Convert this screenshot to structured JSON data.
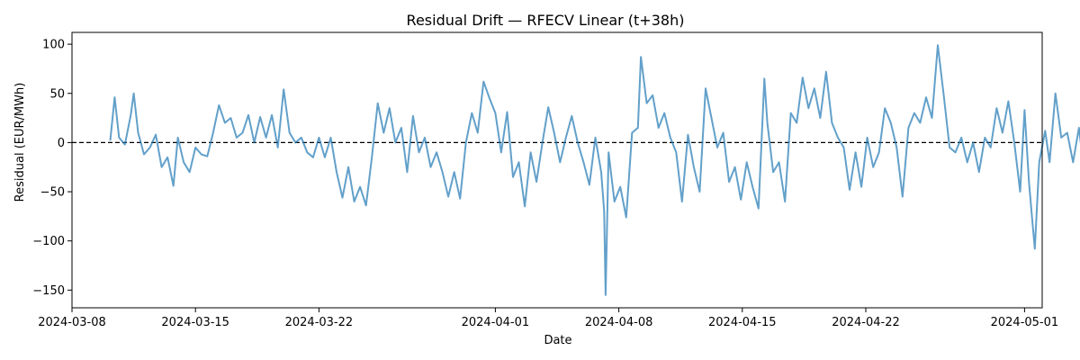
{
  "chart_data": {
    "type": "line",
    "title": "Residual Drift — RFECV Linear (t+38h)",
    "xlabel": "Date",
    "ylabel": "Residual (EUR/MWh)",
    "x_range": [
      "2024-03-08",
      "2024-05-02"
    ],
    "ylim": [
      -168,
      112
    ],
    "x_ticks": [
      "2024-03-08",
      "2024-03-15",
      "2024-03-22",
      "2024-04-01",
      "2024-04-08",
      "2024-04-15",
      "2024-04-22",
      "2024-05-01"
    ],
    "y_ticks": [
      -150,
      -100,
      -50,
      0,
      50,
      100
    ],
    "grid": false,
    "reference_line": {
      "y": 0,
      "style": "dashed",
      "color": "#000000"
    },
    "series": [
      {
        "color": "#1f77b4",
        "opacity": 0.7,
        "points": [
          [
            "2024-03-10T04:00",
            2
          ],
          [
            "2024-03-10T10:00",
            46
          ],
          [
            "2024-03-10T16:00",
            5
          ],
          [
            "2024-03-11T00:00",
            -2
          ],
          [
            "2024-03-11T08:00",
            28
          ],
          [
            "2024-03-11T12:00",
            50
          ],
          [
            "2024-03-11T18:00",
            10
          ],
          [
            "2024-03-12T02:00",
            -12
          ],
          [
            "2024-03-12T10:00",
            -5
          ],
          [
            "2024-03-12T18:00",
            8
          ],
          [
            "2024-03-13T02:00",
            -25
          ],
          [
            "2024-03-13T10:00",
            -15
          ],
          [
            "2024-03-13T18:00",
            -44
          ],
          [
            "2024-03-14T00:00",
            5
          ],
          [
            "2024-03-14T08:00",
            -20
          ],
          [
            "2024-03-14T16:00",
            -30
          ],
          [
            "2024-03-15T00:00",
            -5
          ],
          [
            "2024-03-15T08:00",
            -12
          ],
          [
            "2024-03-15T16:00",
            -14
          ],
          [
            "2024-03-16T00:00",
            10
          ],
          [
            "2024-03-16T08:00",
            38
          ],
          [
            "2024-03-16T16:00",
            20
          ],
          [
            "2024-03-17T00:00",
            25
          ],
          [
            "2024-03-17T08:00",
            5
          ],
          [
            "2024-03-17T16:00",
            10
          ],
          [
            "2024-03-18T00:00",
            28
          ],
          [
            "2024-03-18T08:00",
            0
          ],
          [
            "2024-03-18T16:00",
            26
          ],
          [
            "2024-03-19T00:00",
            5
          ],
          [
            "2024-03-19T08:00",
            28
          ],
          [
            "2024-03-19T16:00",
            -5
          ],
          [
            "2024-03-20T00:00",
            54
          ],
          [
            "2024-03-20T08:00",
            10
          ],
          [
            "2024-03-20T16:00",
            0
          ],
          [
            "2024-03-21T00:00",
            5
          ],
          [
            "2024-03-21T08:00",
            -10
          ],
          [
            "2024-03-21T16:00",
            -15
          ],
          [
            "2024-03-22T00:00",
            5
          ],
          [
            "2024-03-22T08:00",
            -15
          ],
          [
            "2024-03-22T16:00",
            5
          ],
          [
            "2024-03-23T00:00",
            -30
          ],
          [
            "2024-03-23T08:00",
            -56
          ],
          [
            "2024-03-23T16:00",
            -25
          ],
          [
            "2024-03-24T00:00",
            -60
          ],
          [
            "2024-03-24T08:00",
            -45
          ],
          [
            "2024-03-24T16:00",
            -64
          ],
          [
            "2024-03-25T00:00",
            -15
          ],
          [
            "2024-03-25T08:00",
            40
          ],
          [
            "2024-03-25T16:00",
            10
          ],
          [
            "2024-03-26T00:00",
            35
          ],
          [
            "2024-03-26T08:00",
            0
          ],
          [
            "2024-03-26T16:00",
            15
          ],
          [
            "2024-03-27T00:00",
            -30
          ],
          [
            "2024-03-27T08:00",
            27
          ],
          [
            "2024-03-27T16:00",
            -10
          ],
          [
            "2024-03-28T00:00",
            5
          ],
          [
            "2024-03-28T08:00",
            -25
          ],
          [
            "2024-03-28T16:00",
            -10
          ],
          [
            "2024-03-29T00:00",
            -30
          ],
          [
            "2024-03-29T08:00",
            -55
          ],
          [
            "2024-03-29T16:00",
            -30
          ],
          [
            "2024-03-30T00:00",
            -57
          ],
          [
            "2024-03-30T08:00",
            0
          ],
          [
            "2024-03-30T16:00",
            30
          ],
          [
            "2024-03-31T00:00",
            10
          ],
          [
            "2024-03-31T08:00",
            62
          ],
          [
            "2024-03-31T16:00",
            45
          ],
          [
            "2024-04-01T00:00",
            30
          ],
          [
            "2024-04-01T08:00",
            -10
          ],
          [
            "2024-04-01T16:00",
            31
          ],
          [
            "2024-04-02T00:00",
            -35
          ],
          [
            "2024-04-02T08:00",
            -20
          ],
          [
            "2024-04-02T16:00",
            -65
          ],
          [
            "2024-04-03T00:00",
            -10
          ],
          [
            "2024-04-03T08:00",
            -40
          ],
          [
            "2024-04-03T16:00",
            0
          ],
          [
            "2024-04-04T00:00",
            36
          ],
          [
            "2024-04-04T08:00",
            10
          ],
          [
            "2024-04-04T16:00",
            -20
          ],
          [
            "2024-04-05T00:00",
            5
          ],
          [
            "2024-04-05T08:00",
            27
          ],
          [
            "2024-04-05T16:00",
            0
          ],
          [
            "2024-04-06T00:00",
            -20
          ],
          [
            "2024-04-06T08:00",
            -43
          ],
          [
            "2024-04-06T16:00",
            5
          ],
          [
            "2024-04-07T00:00",
            -30
          ],
          [
            "2024-04-07T04:00",
            -70
          ],
          [
            "2024-04-07T06:00",
            -155
          ],
          [
            "2024-04-07T10:00",
            -10
          ],
          [
            "2024-04-07T18:00",
            -60
          ],
          [
            "2024-04-08T02:00",
            -45
          ],
          [
            "2024-04-08T10:00",
            -76
          ],
          [
            "2024-04-08T18:00",
            10
          ],
          [
            "2024-04-09T02:00",
            15
          ],
          [
            "2024-04-09T06:00",
            87
          ],
          [
            "2024-04-09T14:00",
            40
          ],
          [
            "2024-04-09T22:00",
            48
          ],
          [
            "2024-04-10T06:00",
            15
          ],
          [
            "2024-04-10T14:00",
            30
          ],
          [
            "2024-04-10T22:00",
            5
          ],
          [
            "2024-04-11T06:00",
            -10
          ],
          [
            "2024-04-11T14:00",
            -60
          ],
          [
            "2024-04-11T22:00",
            8
          ],
          [
            "2024-04-12T06:00",
            -25
          ],
          [
            "2024-04-12T14:00",
            -50
          ],
          [
            "2024-04-12T22:00",
            55
          ],
          [
            "2024-04-13T06:00",
            25
          ],
          [
            "2024-04-13T14:00",
            -5
          ],
          [
            "2024-04-13T22:00",
            10
          ],
          [
            "2024-04-14T06:00",
            -40
          ],
          [
            "2024-04-14T14:00",
            -25
          ],
          [
            "2024-04-14T22:00",
            -58
          ],
          [
            "2024-04-15T06:00",
            -20
          ],
          [
            "2024-04-15T14:00",
            -45
          ],
          [
            "2024-04-15T22:00",
            -67
          ],
          [
            "2024-04-16T06:00",
            65
          ],
          [
            "2024-04-16T10:00",
            20
          ],
          [
            "2024-04-16T18:00",
            -30
          ],
          [
            "2024-04-17T02:00",
            -20
          ],
          [
            "2024-04-17T10:00",
            -60
          ],
          [
            "2024-04-17T18:00",
            30
          ],
          [
            "2024-04-18T02:00",
            20
          ],
          [
            "2024-04-18T10:00",
            66
          ],
          [
            "2024-04-18T18:00",
            35
          ],
          [
            "2024-04-19T02:00",
            55
          ],
          [
            "2024-04-19T10:00",
            25
          ],
          [
            "2024-04-19T18:00",
            72
          ],
          [
            "2024-04-20T02:00",
            20
          ],
          [
            "2024-04-20T10:00",
            5
          ],
          [
            "2024-04-20T18:00",
            -5
          ],
          [
            "2024-04-21T02:00",
            -48
          ],
          [
            "2024-04-21T10:00",
            -10
          ],
          [
            "2024-04-21T18:00",
            -45
          ],
          [
            "2024-04-22T02:00",
            5
          ],
          [
            "2024-04-22T10:00",
            -25
          ],
          [
            "2024-04-22T18:00",
            -10
          ],
          [
            "2024-04-23T02:00",
            35
          ],
          [
            "2024-04-23T10:00",
            20
          ],
          [
            "2024-04-23T18:00",
            -5
          ],
          [
            "2024-04-24T02:00",
            -55
          ],
          [
            "2024-04-24T10:00",
            15
          ],
          [
            "2024-04-24T18:00",
            30
          ],
          [
            "2024-04-25T02:00",
            20
          ],
          [
            "2024-04-25T10:00",
            46
          ],
          [
            "2024-04-25T18:00",
            25
          ],
          [
            "2024-04-26T02:00",
            99
          ],
          [
            "2024-04-26T10:00",
            48
          ],
          [
            "2024-04-26T18:00",
            -5
          ],
          [
            "2024-04-27T02:00",
            -10
          ],
          [
            "2024-04-27T10:00",
            5
          ],
          [
            "2024-04-27T18:00",
            -20
          ],
          [
            "2024-04-28T02:00",
            0
          ],
          [
            "2024-04-28T10:00",
            -30
          ],
          [
            "2024-04-28T18:00",
            5
          ],
          [
            "2024-04-29T02:00",
            -5
          ],
          [
            "2024-04-29T10:00",
            35
          ],
          [
            "2024-04-29T18:00",
            10
          ],
          [
            "2024-04-30T02:00",
            42
          ],
          [
            "2024-04-30T10:00",
            0
          ],
          [
            "2024-04-30T18:00",
            -50
          ],
          [
            "2024-05-01T00:00",
            33
          ],
          [
            "2024-05-01T06:00",
            -40
          ],
          [
            "2024-05-01T10:00",
            -75
          ],
          [
            "2024-05-01T14:00",
            -108
          ],
          [
            "2024-05-01T20:00",
            -20
          ],
          [
            "2024-05-02T04:00",
            12
          ],
          [
            "2024-05-02T10:00",
            -20
          ],
          [
            "2024-05-02T18:00",
            50
          ],
          [
            "2024-05-03T02:00",
            5
          ],
          [
            "2024-05-03T10:00",
            10
          ],
          [
            "2024-05-03T18:00",
            -20
          ],
          [
            "2024-05-04T02:00",
            15
          ],
          [
            "2024-05-04T06:00",
            -10
          ]
        ]
      }
    ]
  }
}
